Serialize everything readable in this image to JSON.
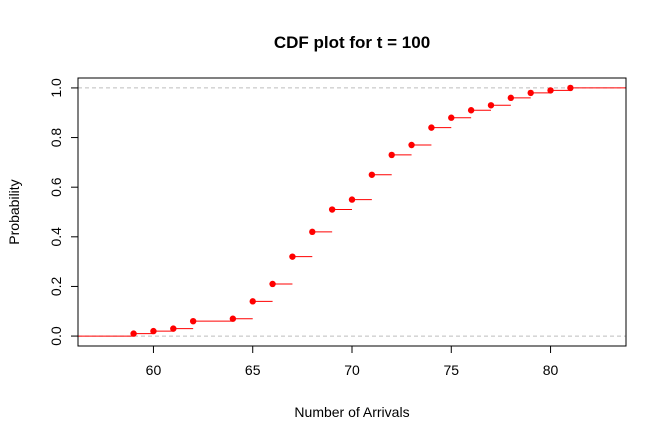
{
  "chart_data": {
    "type": "step",
    "title": "CDF plot for t = 100",
    "xlabel": "Number of Arrivals",
    "ylabel": "Probability",
    "xlim": [
      56.2,
      83.8
    ],
    "ylim": [
      -0.04,
      1.04
    ],
    "x_ticks": [
      60,
      65,
      70,
      75,
      80
    ],
    "y_ticks": [
      0.0,
      0.2,
      0.4,
      0.6,
      0.8,
      1.0
    ],
    "y_tick_labels": [
      "0.0",
      "0.2",
      "0.4",
      "0.6",
      "0.8",
      "1.0"
    ],
    "reference_lines": [
      0,
      1
    ],
    "point_color": "#ff0000",
    "segment_color": "#ff0000",
    "reference_line_color": "#bebebe",
    "x": [
      59,
      60,
      61,
      62,
      64,
      65,
      66,
      67,
      68,
      69,
      70,
      71,
      72,
      73,
      74,
      75,
      76,
      77,
      78,
      79,
      80,
      81
    ],
    "y": [
      0.01,
      0.02,
      0.03,
      0.06,
      0.07,
      0.14,
      0.21,
      0.32,
      0.42,
      0.51,
      0.55,
      0.65,
      0.73,
      0.77,
      0.84,
      0.88,
      0.91,
      0.93,
      0.96,
      0.98,
      0.99,
      1.0
    ]
  }
}
